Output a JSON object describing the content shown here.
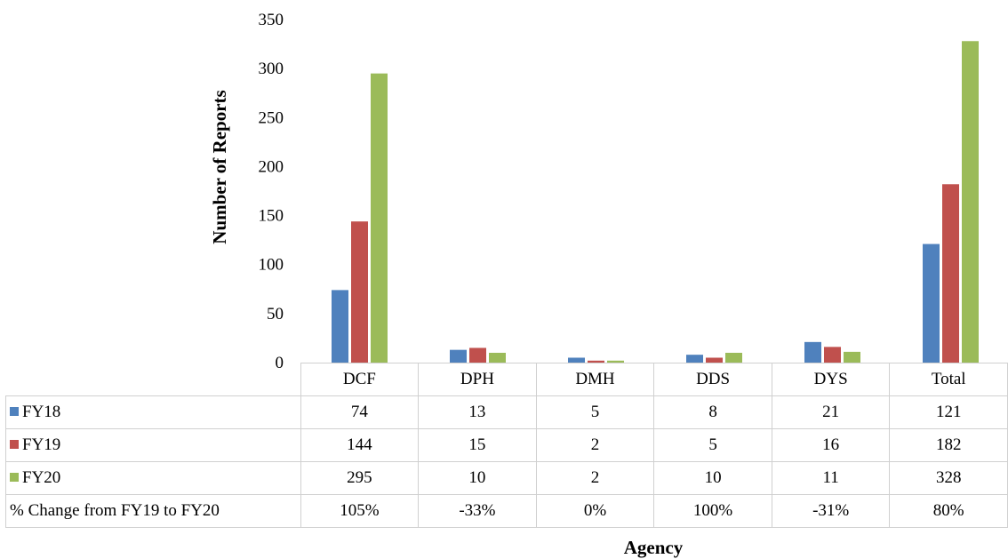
{
  "chart_data": {
    "type": "bar",
    "xlabel": "Agency",
    "ylabel": "Number of Reports",
    "ylim": [
      0,
      350
    ],
    "yticks": [
      0,
      50,
      100,
      150,
      200,
      250,
      300,
      350
    ],
    "grid": false,
    "legend": "data table (left)",
    "categories": [
      "DCF",
      "DPH",
      "DMH",
      "DDS",
      "DYS",
      "Total"
    ],
    "series": [
      {
        "name": "FY18",
        "color": "#4f81bd",
        "values": [
          74,
          13,
          5,
          8,
          21,
          121
        ]
      },
      {
        "name": "FY19",
        "color": "#c0504d",
        "values": [
          144,
          15,
          2,
          5,
          16,
          182
        ]
      },
      {
        "name": "FY20",
        "color": "#9bbb59",
        "values": [
          295,
          10,
          2,
          10,
          11,
          328
        ]
      }
    ],
    "change_row": {
      "label": "% Change from FY19 to FY20",
      "values": [
        "105%",
        "-33%",
        "0%",
        "100%",
        "-31%",
        "80%"
      ]
    }
  }
}
